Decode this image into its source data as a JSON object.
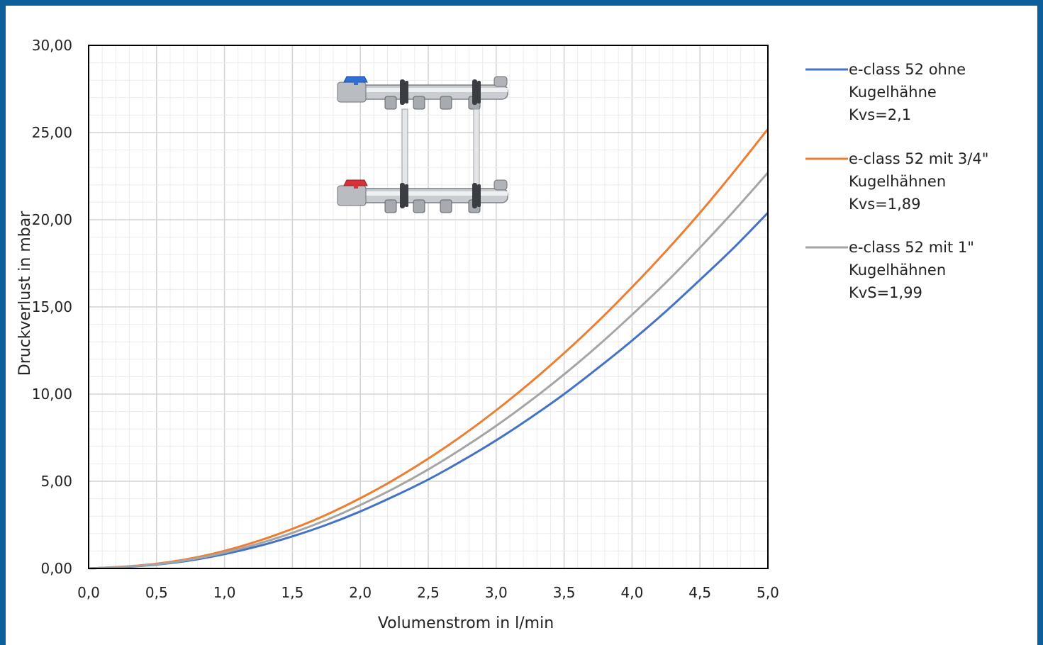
{
  "chart_data": {
    "type": "line",
    "title": "",
    "xlabel": "Volumenstrom in l/min",
    "ylabel": "Druckverlust in mbar",
    "xlim": [
      0,
      5
    ],
    "ylim": [
      0,
      30
    ],
    "x_ticks": [
      "0,0",
      "0,5",
      "1,0",
      "1,5",
      "2,0",
      "2,5",
      "3,0",
      "3,5",
      "4,0",
      "4,5",
      "5,0"
    ],
    "y_ticks": [
      "0,00",
      "5,00",
      "10,00",
      "15,00",
      "20,00",
      "25,00",
      "30,00"
    ],
    "grid": true,
    "legend_position": "right",
    "x": [
      0,
      0.25,
      0.5,
      0.75,
      1.0,
      1.25,
      1.5,
      1.75,
      2.0,
      2.25,
      2.5,
      2.75,
      3.0,
      3.25,
      3.5,
      3.75,
      4.0,
      4.25,
      4.5,
      4.75,
      5.0
    ],
    "series": [
      {
        "name": "e-class 52 ohne Kugelhähne Kvs=2,1",
        "legend_lines": [
          "e-class 52 ohne",
          "Kugelhähne",
          "Kvs=2,1"
        ],
        "color": "#4472c4",
        "values": [
          0,
          0.08,
          0.22,
          0.46,
          0.82,
          1.28,
          1.84,
          2.5,
          3.27,
          4.15,
          5.1,
          6.18,
          7.35,
          8.63,
          10.0,
          11.5,
          13.07,
          14.75,
          16.55,
          18.4,
          20.4
        ]
      },
      {
        "name": "e-class 52 mit 3/4\" Kugelhähnen Kvs=1,89",
        "legend_lines": [
          "e-class 52 mit 3/4\"",
          "Kugelhähnen",
          "Kvs=1,89"
        ],
        "color": "#ed7d31",
        "values": [
          0,
          0.1,
          0.27,
          0.57,
          1.01,
          1.58,
          2.27,
          3.08,
          4.03,
          5.1,
          6.3,
          7.62,
          9.07,
          10.65,
          12.35,
          14.17,
          16.13,
          18.2,
          20.4,
          22.75,
          25.2
        ]
      },
      {
        "name": "e-class 52 mit 1\" Kugelhähnen KvS=1,99",
        "legend_lines": [
          "e-class 52 mit 1\"",
          "Kugelhähnen",
          "KvS=1,99"
        ],
        "color": "#a5a5a5",
        "values": [
          0,
          0.09,
          0.24,
          0.51,
          0.91,
          1.42,
          2.04,
          2.78,
          3.64,
          4.6,
          5.68,
          6.88,
          8.18,
          9.6,
          11.13,
          12.78,
          14.55,
          16.4,
          18.4,
          20.5,
          22.7
        ]
      }
    ]
  },
  "colors": {
    "frame_border": "#0b5f9a",
    "plot_border": "#000000",
    "grid_major": "#d4d4d4",
    "grid_minor": "#ececec"
  },
  "image_icon": "heating-manifold-image"
}
